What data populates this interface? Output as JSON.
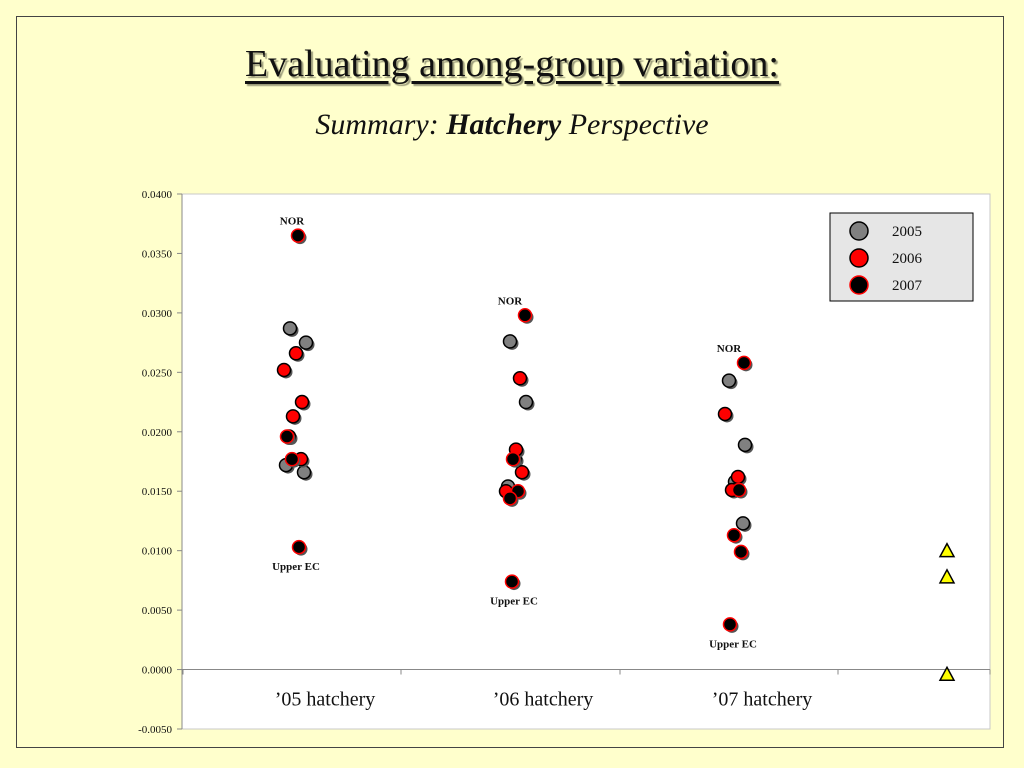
{
  "slide": {
    "title": "Evaluating among-group variation:",
    "subtitle_pre": "Summary: ",
    "subtitle_bold": "Hatchery",
    "subtitle_post": " Perspective"
  },
  "chart_data": {
    "type": "scatter",
    "categories": [
      "’05 hatchery",
      "’06 hatchery",
      "’07 hatchery"
    ],
    "ylim": [
      -0.005,
      0.04
    ],
    "yticks": [
      "0.0400",
      "0.0350",
      "0.0300",
      "0.0250",
      "0.0200",
      "0.0150",
      "0.0100",
      "0.0050",
      "0.0000",
      "-0.0050"
    ],
    "grid": false,
    "legend_position": "top-right",
    "series": [
      {
        "name": "2005",
        "color": "#808080",
        "edge": "#000000",
        "points": [
          {
            "category": 0,
            "y": 0.0287
          },
          {
            "category": 0,
            "y": 0.0275
          },
          {
            "category": 0,
            "y": 0.0172
          },
          {
            "category": 0,
            "y": 0.0166
          },
          {
            "category": 1,
            "y": 0.0276
          },
          {
            "category": 1,
            "y": 0.0225
          },
          {
            "category": 1,
            "y": 0.0177
          },
          {
            "category": 1,
            "y": 0.0154
          },
          {
            "category": 2,
            "y": 0.0243
          },
          {
            "category": 2,
            "y": 0.0189
          },
          {
            "category": 2,
            "y": 0.0158
          },
          {
            "category": 2,
            "y": 0.0123
          }
        ]
      },
      {
        "name": "2006",
        "color": "#ff0000",
        "edge": "#000000",
        "points": [
          {
            "category": 0,
            "y": 0.0266
          },
          {
            "category": 0,
            "y": 0.0252
          },
          {
            "category": 0,
            "y": 0.0225
          },
          {
            "category": 0,
            "y": 0.0213
          },
          {
            "category": 0,
            "y": 0.0196
          },
          {
            "category": 0,
            "y": 0.0177
          },
          {
            "category": 1,
            "y": 0.0245
          },
          {
            "category": 1,
            "y": 0.0185
          },
          {
            "category": 1,
            "y": 0.0166
          },
          {
            "category": 1,
            "y": 0.015
          },
          {
            "category": 2,
            "y": 0.0215
          },
          {
            "category": 2,
            "y": 0.0162
          },
          {
            "category": 2,
            "y": 0.0151
          }
        ]
      },
      {
        "name": "2007",
        "color": "#000000",
        "edge": "#ff0000",
        "points": [
          {
            "category": 0,
            "y": 0.0365
          },
          {
            "category": 0,
            "y": 0.0196
          },
          {
            "category": 0,
            "y": 0.0177
          },
          {
            "category": 0,
            "y": 0.0103
          },
          {
            "category": 1,
            "y": 0.0298
          },
          {
            "category": 1,
            "y": 0.0177
          },
          {
            "category": 1,
            "y": 0.015
          },
          {
            "category": 1,
            "y": 0.0144
          },
          {
            "category": 1,
            "y": 0.0074
          },
          {
            "category": 2,
            "y": 0.0258
          },
          {
            "category": 2,
            "y": 0.0151
          },
          {
            "category": 2,
            "y": 0.0113
          },
          {
            "category": 2,
            "y": 0.0099
          },
          {
            "category": 2,
            "y": 0.0038
          }
        ]
      }
    ],
    "extra_markers": {
      "shape": "triangle",
      "color": "#ffff00",
      "edge": "#000000",
      "values": [
        0.01,
        0.0078,
        -0.0004
      ]
    },
    "annotations": [
      {
        "text": "NOR",
        "category": 0,
        "y": 0.0365
      },
      {
        "text": "Upper EC",
        "category": 0,
        "y": 0.0103
      },
      {
        "text": "NOR",
        "category": 1,
        "y": 0.0298
      },
      {
        "text": "Upper EC",
        "category": 1,
        "y": 0.0074
      },
      {
        "text": "NOR",
        "category": 2,
        "y": 0.0258
      },
      {
        "text": "Upper EC",
        "category": 2,
        "y": 0.0038
      }
    ]
  }
}
